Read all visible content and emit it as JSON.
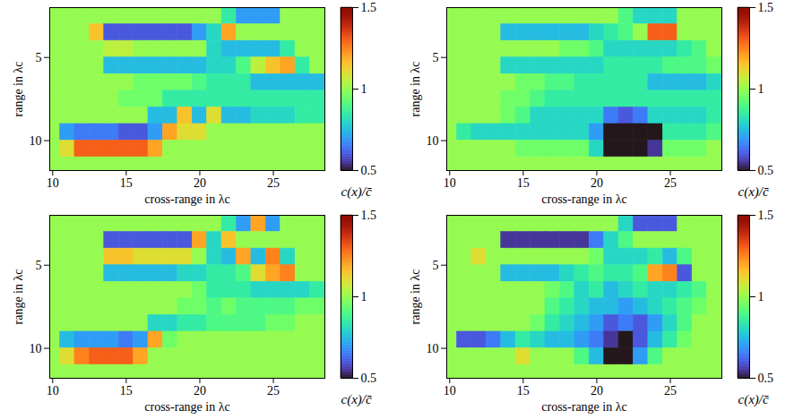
{
  "chart_data": [
    {
      "type": "heatmap",
      "xlabel": "cross-range in λc",
      "ylabel": "range in λc",
      "color": "turbo",
      "xlim": [
        9.8,
        28.5
      ],
      "ylim": [
        11.8,
        2
      ],
      "xticks": [
        10,
        15,
        20,
        25
      ],
      "yticks": [
        5,
        10
      ],
      "colorbar": {
        "label": "c(x)/c̄",
        "range": [
          0.5,
          1.5
        ],
        "ticks": [
          0.5,
          1,
          1.5
        ]
      },
      "x": [
        10,
        11,
        12,
        13,
        14,
        15,
        16,
        17,
        18,
        19,
        20,
        21,
        22,
        23,
        24,
        25,
        26,
        27,
        28
      ],
      "y": [
        2.5,
        3.5,
        4.5,
        5.5,
        6.5,
        7.5,
        8.5,
        9.5,
        10.5,
        11.5
      ],
      "values": [
        [
          1,
          1,
          1,
          1,
          1,
          1,
          1,
          1,
          1,
          1,
          1,
          1,
          0.85,
          0.7,
          0.7,
          0.7,
          1,
          1,
          1
        ],
        [
          1,
          1,
          1,
          1.15,
          0.6,
          0.6,
          0.6,
          0.6,
          0.6,
          0.6,
          0.7,
          0.8,
          1.2,
          1,
          1,
          1,
          1,
          1,
          1
        ],
        [
          1,
          1,
          1,
          1,
          1.05,
          1.05,
          1,
          1,
          1,
          1,
          1,
          0.8,
          0.75,
          0.75,
          0.75,
          0.75,
          0.85,
          1,
          1
        ],
        [
          1,
          1,
          1,
          1,
          0.75,
          0.75,
          0.75,
          0.75,
          0.75,
          0.75,
          0.75,
          0.8,
          0.8,
          0.9,
          1.05,
          1.15,
          1.2,
          0.85,
          1
        ],
        [
          1,
          1,
          1,
          1,
          1,
          1,
          0.95,
          0.95,
          0.95,
          0.95,
          0.9,
          0.85,
          0.85,
          0.85,
          0.75,
          0.75,
          0.75,
          0.75,
          0.75
        ],
        [
          1,
          1,
          1,
          1,
          1,
          0.95,
          0.95,
          0.95,
          0.85,
          0.85,
          0.85,
          0.85,
          0.85,
          0.85,
          0.85,
          0.85,
          0.85,
          0.85,
          0.85
        ],
        [
          1,
          1,
          1,
          1,
          1,
          1,
          1,
          0.75,
          0.75,
          1.15,
          0.75,
          1.1,
          0.75,
          0.75,
          0.8,
          0.8,
          0.8,
          0.85,
          0.85
        ],
        [
          1,
          0.7,
          0.65,
          0.65,
          0.65,
          0.6,
          0.6,
          0.7,
          1.2,
          1.1,
          1.1,
          1,
          1,
          1,
          1,
          1,
          1,
          1,
          1
        ],
        [
          1,
          1.1,
          1.3,
          1.3,
          1.3,
          1.3,
          1.3,
          1.2,
          1,
          1,
          1,
          1,
          1,
          1,
          1,
          1,
          1,
          1,
          1
        ],
        [
          1,
          1,
          1,
          1,
          1,
          1,
          1,
          1,
          1,
          1,
          1,
          1,
          1,
          1,
          1,
          1,
          1,
          1,
          1
        ]
      ]
    },
    {
      "type": "heatmap",
      "xlabel": "cross-range in λc",
      "ylabel": "range in λc",
      "color": "turbo",
      "xlim": [
        9.8,
        28.5
      ],
      "ylim": [
        11.8,
        2
      ],
      "xticks": [
        10,
        15,
        20,
        25
      ],
      "yticks": [
        5,
        10
      ],
      "colorbar": {
        "label": "c(x)/c̄",
        "range": [
          0.5,
          1.5
        ],
        "ticks": [
          0.5,
          1,
          1.5
        ]
      },
      "x": [
        10,
        11,
        12,
        13,
        14,
        15,
        16,
        17,
        18,
        19,
        20,
        21,
        22,
        23,
        24,
        25,
        26,
        27,
        28
      ],
      "y": [
        2.5,
        3.5,
        4.5,
        5.5,
        6.5,
        7.5,
        8.5,
        9.5,
        10.5,
        11.5
      ],
      "values": [
        [
          1,
          1,
          1,
          1,
          1,
          1,
          1,
          1,
          1,
          1,
          1,
          1,
          0.9,
          0.8,
          0.8,
          0.8,
          1,
          1,
          1
        ],
        [
          1,
          1,
          1,
          1,
          0.75,
          0.75,
          0.75,
          0.75,
          0.75,
          0.75,
          0.8,
          0.85,
          0.9,
          1,
          1.3,
          1.3,
          1,
          1,
          1
        ],
        [
          1,
          1,
          1,
          1,
          1,
          1,
          1,
          1,
          0.95,
          0.95,
          0.9,
          0.8,
          0.8,
          0.8,
          0.8,
          0.8,
          0.85,
          0.9,
          1
        ],
        [
          1,
          1,
          1,
          1,
          0.8,
          0.8,
          0.8,
          0.8,
          0.8,
          0.8,
          0.8,
          0.85,
          0.85,
          0.85,
          0.85,
          0.9,
          0.9,
          0.9,
          0.95
        ],
        [
          1,
          1,
          1,
          1,
          1,
          0.95,
          0.95,
          0.9,
          0.9,
          0.85,
          0.85,
          0.85,
          0.85,
          0.85,
          0.75,
          0.75,
          0.75,
          0.75,
          0.8
        ],
        [
          1,
          1,
          1,
          1,
          0.95,
          0.95,
          0.9,
          0.85,
          0.85,
          0.85,
          0.85,
          0.85,
          0.85,
          0.85,
          0.85,
          0.85,
          0.85,
          0.85,
          0.85
        ],
        [
          1,
          1,
          1,
          1,
          0.95,
          0.9,
          0.8,
          0.8,
          0.8,
          0.8,
          0.8,
          0.65,
          0.6,
          0.65,
          0.8,
          0.8,
          0.8,
          0.8,
          0.85
        ],
        [
          1,
          0.85,
          0.8,
          0.8,
          0.8,
          0.8,
          0.8,
          0.8,
          0.8,
          0.8,
          0.7,
          0.5,
          0.5,
          0.5,
          0.5,
          0.85,
          0.85,
          0.85,
          0.9
        ],
        [
          1,
          1,
          1,
          1,
          1,
          0.95,
          0.95,
          0.95,
          0.95,
          0.95,
          0.8,
          0.5,
          0.5,
          0.5,
          0.55,
          0.95,
          0.95,
          0.95,
          1
        ],
        [
          1,
          1,
          1,
          1,
          1,
          1,
          1,
          1,
          1,
          1,
          1,
          1,
          1,
          1,
          1,
          1,
          1,
          1,
          1
        ]
      ]
    },
    {
      "type": "heatmap",
      "xlabel": "cross-range in λc",
      "ylabel": "range in λc",
      "color": "turbo",
      "xlim": [
        9.8,
        28.5
      ],
      "ylim": [
        11.8,
        2
      ],
      "xticks": [
        10,
        15,
        20,
        25
      ],
      "yticks": [
        5,
        10
      ],
      "colorbar": {
        "label": "c(x)/c̄",
        "range": [
          0.5,
          1.5
        ],
        "ticks": [
          0.5,
          1,
          1.5
        ]
      },
      "x": [
        10,
        11,
        12,
        13,
        14,
        15,
        16,
        17,
        18,
        19,
        20,
        21,
        22,
        23,
        24,
        25,
        26,
        27,
        28
      ],
      "y": [
        2.5,
        3.5,
        4.5,
        5.5,
        6.5,
        7.5,
        8.5,
        9.5,
        10.5,
        11.5
      ],
      "values": [
        [
          1,
          1,
          1,
          1,
          1,
          1,
          1,
          1,
          1,
          1,
          1,
          1,
          0.85,
          0.7,
          1.2,
          0.7,
          1,
          1,
          1
        ],
        [
          1,
          1,
          1,
          1,
          0.6,
          0.6,
          0.6,
          0.6,
          0.6,
          0.6,
          1.2,
          0.8,
          1.15,
          1,
          1,
          1,
          1,
          1,
          1
        ],
        [
          1,
          1,
          1,
          1,
          1.15,
          1.15,
          1.1,
          1.1,
          1.1,
          1.1,
          1,
          0.8,
          0.75,
          1.2,
          0.75,
          1.25,
          0.8,
          1,
          1
        ],
        [
          1,
          1,
          1,
          1,
          0.75,
          0.75,
          0.75,
          0.75,
          0.75,
          0.8,
          0.8,
          0.85,
          0.85,
          0.9,
          1.1,
          1.2,
          1.25,
          1,
          1
        ],
        [
          1,
          1,
          1,
          1,
          1,
          1,
          1,
          1,
          1,
          1,
          0.95,
          0.85,
          0.85,
          0.85,
          0.8,
          0.8,
          0.8,
          0.8,
          0.85
        ],
        [
          1,
          1,
          1,
          1,
          1,
          1,
          1,
          1,
          1,
          0.95,
          0.95,
          0.9,
          0.95,
          0.9,
          0.9,
          0.9,
          0.9,
          0.95,
          0.95
        ],
        [
          1,
          1,
          1,
          1,
          1,
          1,
          1,
          0.8,
          0.8,
          0.85,
          0.85,
          0.9,
          0.9,
          0.9,
          0.9,
          0.95,
          0.95,
          1,
          1
        ],
        [
          1,
          0.75,
          0.7,
          0.7,
          0.7,
          0.65,
          0.7,
          1.2,
          0.95,
          1,
          1,
          1,
          1,
          1,
          1,
          1,
          1,
          1,
          1
        ],
        [
          1,
          1.1,
          1.25,
          1.3,
          1.3,
          1.3,
          1.2,
          1,
          1,
          1,
          1,
          1,
          1,
          1,
          1,
          1,
          1,
          1,
          1
        ],
        [
          1,
          1,
          1,
          1,
          1,
          1,
          1,
          1,
          1,
          1,
          1,
          1,
          1,
          1,
          1,
          1,
          1,
          1,
          1
        ]
      ]
    },
    {
      "type": "heatmap",
      "xlabel": "cross-range in λc",
      "ylabel": "range in λc",
      "color": "turbo",
      "xlim": [
        9.8,
        28.5
      ],
      "ylim": [
        11.8,
        2
      ],
      "xticks": [
        10,
        15,
        20,
        25
      ],
      "yticks": [
        5,
        10
      ],
      "colorbar": {
        "label": "c(x)/c̄",
        "range": [
          0.5,
          1.5
        ],
        "ticks": [
          0.5,
          1,
          1.5
        ]
      },
      "x": [
        10,
        11,
        12,
        13,
        14,
        15,
        16,
        17,
        18,
        19,
        20,
        21,
        22,
        23,
        24,
        25,
        26,
        27,
        28
      ],
      "y": [
        2.5,
        3.5,
        4.5,
        5.5,
        6.5,
        7.5,
        8.5,
        9.5,
        10.5,
        11.5
      ],
      "values": [
        [
          1,
          1,
          1,
          1,
          1,
          1,
          1,
          1,
          1,
          1,
          1,
          1,
          0.8,
          0.6,
          0.6,
          0.6,
          1,
          1,
          1
        ],
        [
          1,
          1,
          1,
          1,
          0.55,
          0.55,
          0.55,
          0.55,
          0.55,
          0.55,
          0.65,
          0.8,
          0.9,
          1,
          1,
          1,
          1,
          1,
          1
        ],
        [
          1,
          1,
          1.1,
          1,
          1,
          1,
          1,
          1,
          1,
          1,
          0.95,
          0.8,
          0.8,
          0.8,
          0.85,
          0.75,
          0.9,
          1,
          1
        ],
        [
          1,
          1,
          1,
          1,
          0.75,
          0.75,
          0.75,
          0.75,
          0.8,
          0.85,
          0.9,
          0.85,
          0.85,
          0.9,
          1.2,
          1.25,
          0.6,
          1,
          1
        ],
        [
          1,
          1,
          1,
          1,
          1,
          1,
          1,
          0.95,
          0.9,
          0.8,
          0.85,
          0.75,
          0.8,
          0.85,
          0.8,
          0.8,
          0.85,
          0.9,
          1
        ],
        [
          1,
          1,
          1,
          1,
          1,
          1,
          1,
          0.9,
          0.85,
          0.8,
          0.75,
          0.75,
          0.7,
          0.75,
          0.8,
          0.85,
          0.9,
          0.95,
          1
        ],
        [
          1,
          1,
          1,
          1,
          1,
          1,
          0.95,
          0.85,
          0.8,
          0.75,
          0.7,
          0.6,
          0.65,
          0.6,
          0.7,
          0.8,
          0.9,
          1,
          1
        ],
        [
          1,
          0.6,
          0.6,
          0.65,
          0.75,
          0.85,
          0.8,
          0.75,
          0.75,
          0.7,
          0.65,
          0.55,
          0.5,
          0.6,
          0.75,
          0.85,
          0.95,
          1,
          1
        ],
        [
          1,
          1,
          1,
          1,
          1,
          1.1,
          1,
          1,
          1,
          0.9,
          0.75,
          0.5,
          0.5,
          0.7,
          0.9,
          1,
          1,
          1,
          1
        ],
        [
          1,
          1,
          1,
          1,
          1,
          1,
          1,
          1,
          1,
          1,
          1,
          1,
          1,
          1,
          1,
          1,
          1,
          1,
          1
        ]
      ]
    }
  ]
}
